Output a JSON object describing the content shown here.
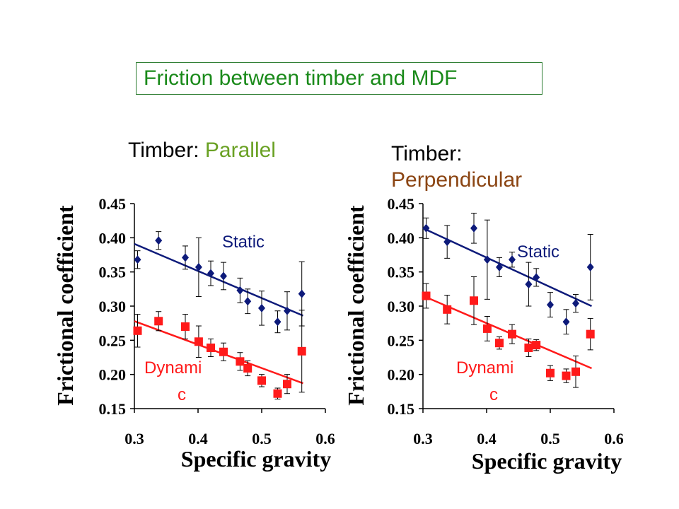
{
  "title": "Friction between timber and MDF",
  "panels": [
    {
      "prefix": "Timber: ",
      "orientation": "Parallel"
    },
    {
      "prefix": "Timber: ",
      "orientation": "Perpendicular"
    }
  ],
  "colors": {
    "static": "#0d1a7a",
    "dynamic": "#ff1a1a",
    "title_green": "#1a8a1a",
    "parallel": "#6aa124",
    "perpendicular": "#8b4513"
  },
  "chart_data": [
    {
      "type": "scatter",
      "xlabel": "Specific gravity",
      "ylabel": "Frictional coefficient",
      "xlim": [
        0.3,
        0.6
      ],
      "ylim": [
        0.15,
        0.45
      ],
      "x_ticks": [
        "0.3",
        "0.4",
        "0.5",
        "0.6"
      ],
      "y_ticks": [
        "0.45",
        "0.40",
        "0.35",
        "0.30",
        "0.25",
        "0.20",
        "0.15"
      ],
      "series": [
        {
          "name": "Static",
          "marker": "diamond",
          "points": [
            [
              0.305,
              0.368
            ],
            [
              0.338,
              0.396
            ],
            [
              0.38,
              0.371
            ],
            [
              0.401,
              0.357
            ],
            [
              0.42,
              0.348
            ],
            [
              0.44,
              0.344
            ],
            [
              0.466,
              0.323
            ],
            [
              0.478,
              0.307
            ],
            [
              0.5,
              0.297
            ],
            [
              0.525,
              0.277
            ],
            [
              0.54,
              0.293
            ],
            [
              0.563,
              0.318
            ]
          ],
          "err": [
            0.013,
            0.013,
            0.017,
            0.043,
            0.018,
            0.02,
            0.018,
            0.018,
            0.025,
            0.016,
            0.028,
            0.047
          ],
          "fit": [
            [
              0.3,
              0.391
            ],
            [
              0.565,
              0.286
            ]
          ]
        },
        {
          "name": "Dynamic",
          "marker": "square",
          "points": [
            [
              0.305,
              0.264
            ],
            [
              0.338,
              0.278
            ],
            [
              0.38,
              0.27
            ],
            [
              0.401,
              0.248
            ],
            [
              0.42,
              0.239
            ],
            [
              0.44,
              0.233
            ],
            [
              0.466,
              0.219
            ],
            [
              0.478,
              0.209
            ],
            [
              0.5,
              0.191
            ],
            [
              0.525,
              0.172
            ],
            [
              0.54,
              0.186
            ],
            [
              0.563,
              0.234
            ]
          ],
          "err": [
            0.024,
            0.014,
            0.018,
            0.023,
            0.013,
            0.013,
            0.013,
            0.011,
            0.009,
            0.008,
            0.014,
            0.06
          ],
          "fit": [
            [
              0.3,
              0.278
            ],
            [
              0.565,
              0.187
            ]
          ]
        }
      ],
      "labels": {
        "static": "Static",
        "dynamic_1": "Dynami",
        "dynamic_2": "c"
      }
    },
    {
      "type": "scatter",
      "xlabel": "Specific gravity",
      "ylabel": "Frictional coefficient",
      "xlim": [
        0.3,
        0.6
      ],
      "ylim": [
        0.15,
        0.45
      ],
      "x_ticks": [
        "0.3",
        "0.4",
        "0.5",
        "0.6"
      ],
      "y_ticks": [
        "0.45",
        "0.40",
        "0.35",
        "0.30",
        "0.25",
        "0.20",
        "0.15"
      ],
      "series": [
        {
          "name": "Static",
          "marker": "diamond",
          "points": [
            [
              0.305,
              0.414
            ],
            [
              0.338,
              0.394
            ],
            [
              0.38,
              0.414
            ],
            [
              0.401,
              0.368
            ],
            [
              0.42,
              0.357
            ],
            [
              0.44,
              0.368
            ],
            [
              0.466,
              0.332
            ],
            [
              0.478,
              0.342
            ],
            [
              0.5,
              0.302
            ],
            [
              0.525,
              0.277
            ],
            [
              0.54,
              0.304
            ],
            [
              0.563,
              0.357
            ]
          ],
          "err": [
            0.015,
            0.024,
            0.022,
            0.058,
            0.014,
            0.011,
            0.032,
            0.013,
            0.018,
            0.018,
            0.013,
            0.048
          ],
          "fit": [
            [
              0.3,
              0.414
            ],
            [
              0.565,
              0.3
            ]
          ]
        },
        {
          "name": "Dynamic",
          "marker": "square",
          "points": [
            [
              0.305,
              0.315
            ],
            [
              0.338,
              0.295
            ],
            [
              0.38,
              0.308
            ],
            [
              0.401,
              0.267
            ],
            [
              0.42,
              0.246
            ],
            [
              0.44,
              0.259
            ],
            [
              0.466,
              0.239
            ],
            [
              0.478,
              0.243
            ],
            [
              0.5,
              0.202
            ],
            [
              0.525,
              0.198
            ],
            [
              0.54,
              0.204
            ],
            [
              0.563,
              0.259
            ]
          ],
          "err": [
            0.018,
            0.021,
            0.035,
            0.018,
            0.009,
            0.014,
            0.013,
            0.008,
            0.011,
            0.01,
            0.023,
            0.023
          ],
          "fit": [
            [
              0.3,
              0.315
            ],
            [
              0.565,
              0.209
            ]
          ]
        }
      ],
      "labels": {
        "static": "Static",
        "dynamic_1": "Dynami",
        "dynamic_2": "c"
      }
    }
  ]
}
